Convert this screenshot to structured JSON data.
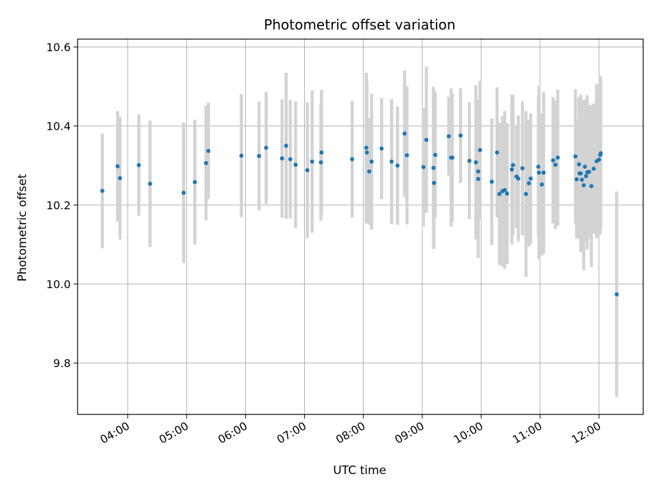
{
  "chart_data": {
    "type": "scatter",
    "title": "Photometric offset variation",
    "xlabel": "UTC time",
    "ylabel": "Photometric offset",
    "x_unit": "hours UTC",
    "xlim": [
      3.15,
      12.75
    ],
    "ylim": [
      9.67,
      10.62
    ],
    "grid": true,
    "legend": "none",
    "x_ticks": [
      4,
      5,
      6,
      7,
      8,
      9,
      10,
      11,
      12
    ],
    "x_tick_labels": [
      "04:00",
      "05:00",
      "06:00",
      "07:00",
      "08:00",
      "09:00",
      "10:00",
      "11:00",
      "12:00"
    ],
    "y_ticks": [
      9.8,
      10.0,
      10.2,
      10.4,
      10.6
    ],
    "y_tick_labels": [
      "9.8",
      "10.0",
      "10.2",
      "10.4",
      "10.6"
    ],
    "colors": {
      "point": "#1f77b4",
      "errorbar": "#d3d3d3",
      "grid": "#b0b0b0"
    },
    "series": [
      {
        "x": [
          3.57,
          3.83,
          3.87,
          4.19,
          4.38,
          4.95,
          5.14,
          5.33,
          5.37,
          5.93,
          6.23,
          6.35,
          6.62,
          6.69,
          6.76,
          6.85,
          7.05,
          7.13,
          7.28,
          7.29,
          7.81,
          8.05,
          8.06,
          8.1,
          8.14,
          8.31,
          8.48,
          8.58,
          8.7,
          8.74,
          9.02,
          9.07,
          9.19,
          9.2,
          9.22,
          9.45,
          9.49,
          9.51,
          9.65,
          9.8,
          9.91,
          9.95,
          9.95,
          9.98,
          10.18,
          10.27,
          10.31,
          10.36,
          10.4,
          10.44,
          10.52,
          10.54,
          10.6,
          10.63,
          10.7,
          10.76,
          10.81,
          10.84,
          10.97,
          10.98,
          11.03,
          11.06,
          11.22,
          11.26,
          11.3,
          11.6,
          11.62,
          11.66,
          11.67,
          11.69,
          11.71,
          11.74,
          11.76,
          11.78,
          11.8,
          11.83,
          11.87,
          11.91,
          11.96,
          12.0,
          12.02,
          12.03,
          12.3
        ],
        "y": [
          10.236,
          10.298,
          10.268,
          10.301,
          10.254,
          10.231,
          10.258,
          10.306,
          10.337,
          10.325,
          10.324,
          10.345,
          10.318,
          10.35,
          10.316,
          10.302,
          10.288,
          10.31,
          10.308,
          10.333,
          10.316,
          10.345,
          10.333,
          10.285,
          10.31,
          10.343,
          10.31,
          10.3,
          10.381,
          10.326,
          10.296,
          10.365,
          10.294,
          10.256,
          10.327,
          10.374,
          10.32,
          10.32,
          10.376,
          10.312,
          10.308,
          10.285,
          10.266,
          10.339,
          10.259,
          10.333,
          10.228,
          10.235,
          10.238,
          10.229,
          10.29,
          10.301,
          10.272,
          10.267,
          10.293,
          10.228,
          10.255,
          10.267,
          10.297,
          10.282,
          10.252,
          10.282,
          10.313,
          10.302,
          10.32,
          10.323,
          10.265,
          10.303,
          10.28,
          10.28,
          10.264,
          10.25,
          10.297,
          10.273,
          10.283,
          10.284,
          10.248,
          10.292,
          10.311,
          10.315,
          10.327,
          10.331,
          9.974
        ],
        "err": [
          0.145,
          0.14,
          0.155,
          0.128,
          0.16,
          0.178,
          0.158,
          0.145,
          0.122,
          0.156,
          0.138,
          0.142,
          0.15,
          0.185,
          0.15,
          0.16,
          0.172,
          0.18,
          0.148,
          0.158,
          0.148,
          0.19,
          0.18,
          0.135,
          0.172,
          0.128,
          0.158,
          0.15,
          0.16,
          0.175,
          0.15,
          0.185,
          0.205,
          0.165,
          0.16,
          0.1,
          0.175,
          0.162,
          0.12,
          0.148,
          0.195,
          0.18,
          0.2,
          0.175,
          0.16,
          0.165,
          0.18,
          0.19,
          0.2,
          0.178,
          0.19,
          0.177,
          0.13,
          0.16,
          0.17,
          0.21,
          0.16,
          0.165,
          0.175,
          0.22,
          0.18,
          0.205,
          0.16,
          0.163,
          0.172,
          0.17,
          0.15,
          0.17,
          0.165,
          0.2,
          0.17,
          0.215,
          0.17,
          0.165,
          0.195,
          0.17,
          0.205,
          0.165,
          0.195,
          0.19,
          0.2,
          0.19,
          0.26
        ]
      }
    ]
  }
}
